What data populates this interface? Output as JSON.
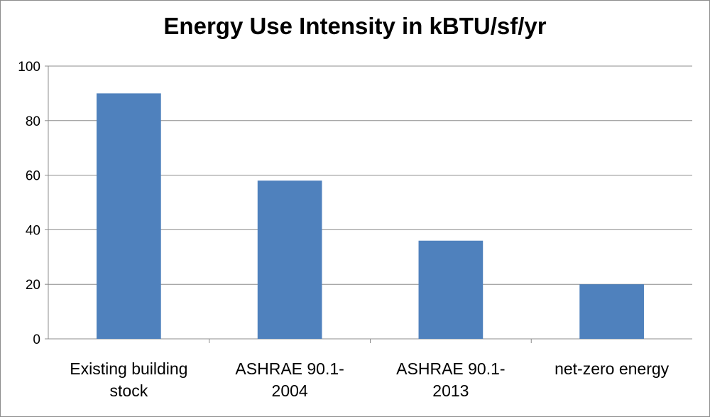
{
  "chart_data": {
    "type": "bar",
    "title": "Energy Use Intensity in kBTU/sf/yr",
    "xlabel": "",
    "ylabel": "",
    "categories": [
      [
        "Existing building",
        "stock"
      ],
      [
        "ASHRAE 90.1-",
        "2004"
      ],
      [
        "ASHRAE 90.1-",
        "2013"
      ],
      [
        "net-zero energy"
      ]
    ],
    "values": [
      90,
      58,
      36,
      20
    ],
    "ylim": [
      0,
      100
    ],
    "yticks": [
      "0",
      "20",
      "40",
      "60",
      "80",
      "100"
    ],
    "grid": true,
    "legend": "none",
    "bar_color": "#4f81bd",
    "grid_color": "#8c8c8c"
  }
}
